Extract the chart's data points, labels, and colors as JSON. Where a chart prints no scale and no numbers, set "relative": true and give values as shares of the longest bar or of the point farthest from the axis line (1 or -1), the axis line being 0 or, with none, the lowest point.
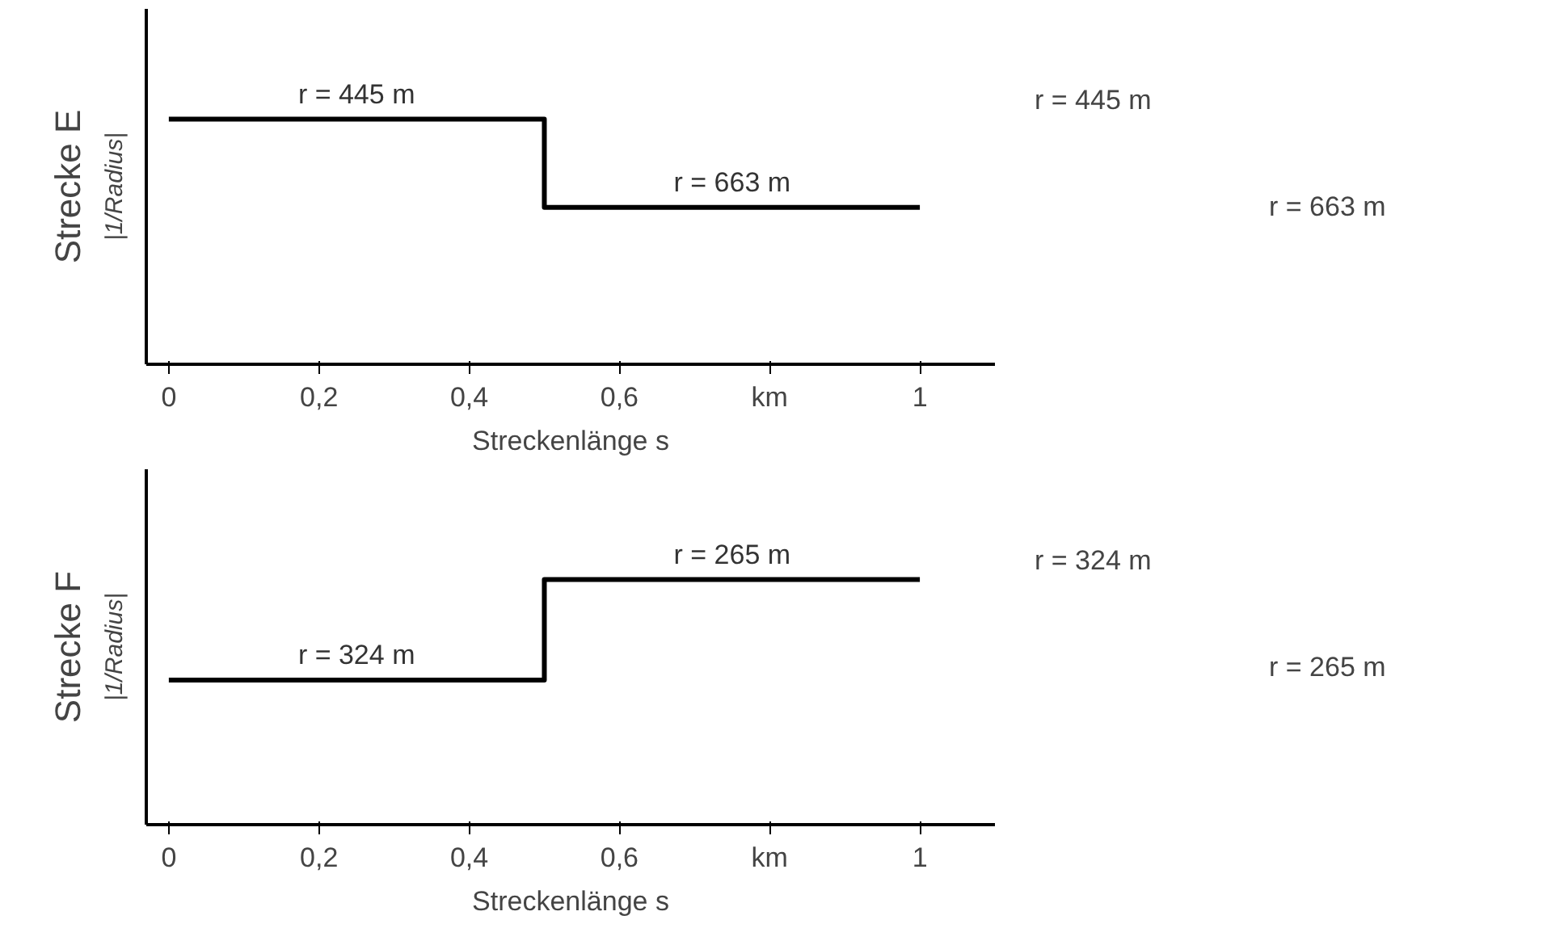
{
  "chart_data": [
    {
      "type": "step",
      "title": "Strecke E",
      "ylabel": "|1/Radius|",
      "xlabel": "Streckenlänge s",
      "relative": true,
      "x": [
        0,
        0.5,
        1
      ],
      "xlim": [
        -0.03,
        1.1
      ],
      "xticks": [
        0,
        {
          "value": 0.2,
          "label": "0,2"
        },
        {
          "value": 0.4,
          "label": "0,4"
        },
        {
          "value": 0.6,
          "label": "0,6"
        },
        {
          "value": 0.8,
          "label": "km"
        },
        1
      ],
      "series": [
        {
          "color": "#000000",
          "values": [
            1,
            0.64,
            0.64
          ]
        }
      ],
      "annotations": [
        "r = 445 m",
        "r = 663 m",
        "r = 445 m",
        "r = 663 m"
      ],
      "grid": false
    },
    {
      "type": "step",
      "title": "Strecke F",
      "ylabel": "|1/Radius|",
      "xlabel": "Streckenlänge s",
      "relative": true,
      "x": [
        0,
        0.5,
        1
      ],
      "xlim": [
        -0.03,
        1.1
      ],
      "xticks": [
        0,
        {
          "value": 0.2,
          "label": "0,2"
        },
        {
          "value": 0.4,
          "label": "0,4"
        },
        {
          "value": 0.6,
          "label": "0,6"
        },
        {
          "value": 0.8,
          "label": "km"
        },
        1
      ],
      "series": [
        {
          "color": "#000000",
          "values": [
            0.59,
            1,
            1
          ]
        }
      ],
      "annotations": [
        "r = 324 m",
        "r = 265 m",
        "r = 324 m",
        "r = 265 m"
      ],
      "grid": false
    }
  ]
}
